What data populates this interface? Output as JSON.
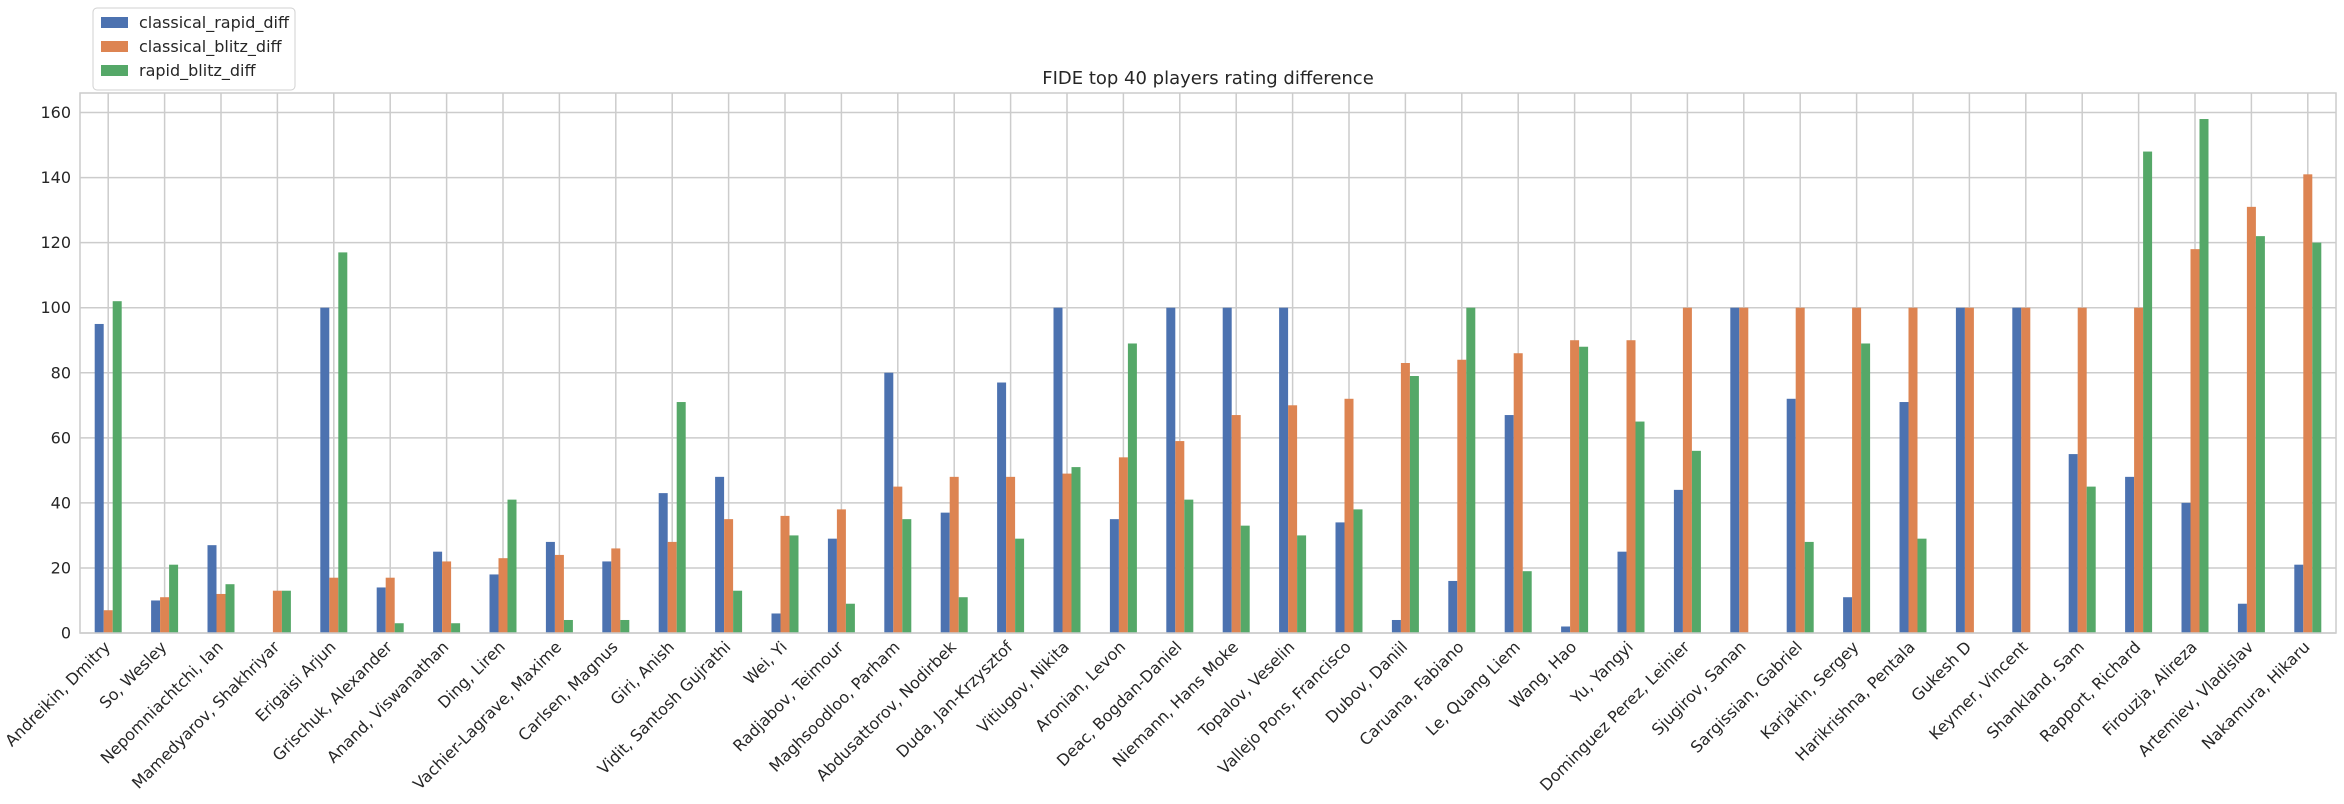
{
  "chart_data": {
    "type": "bar",
    "title": "FIDE top 40 players rating difference",
    "xlabel": "",
    "ylabel": "",
    "ylim": [
      0,
      166
    ],
    "yticks": [
      0,
      20,
      40,
      60,
      80,
      100,
      120,
      140,
      160
    ],
    "grid": true,
    "legend_position": "top-left",
    "categories": [
      "Andreikin, Dmitry",
      "So, Wesley",
      "Nepomniachtchi, Ian",
      "Mamedyarov, Shakhriyar",
      "Erigaisi Arjun",
      "Grischuk, Alexander",
      "Anand, Viswanathan",
      "Ding, Liren",
      "Vachier-Lagrave, Maxime",
      "Carlsen, Magnus",
      "Giri, Anish",
      "Vidit, Santosh Gujrathi",
      "Wei, Yi",
      "Radjabov, Teimour",
      "Maghsoodloo, Parham",
      "Abdusattorov, Nodirbek",
      "Duda, Jan-Krzysztof",
      "Vitiugov, Nikita",
      "Aronian, Levon",
      "Deac, Bogdan-Daniel",
      "Niemann, Hans Moke",
      "Topalov, Veselin",
      "Vallejo Pons, Francisco",
      "Dubov, Daniil",
      "Caruana, Fabiano",
      "Le, Quang Liem",
      "Wang, Hao",
      "Yu, Yangyi",
      "Dominguez Perez, Leinier",
      "Sjugirov, Sanan",
      "Sargissian, Gabriel",
      "Karjakin, Sergey",
      "Harikrishna, Pentala",
      "Gukesh D",
      "Keymer, Vincent",
      "Shankland, Sam",
      "Rapport, Richard",
      "Firouzja, Alireza",
      "Artemiev, Vladislav",
      "Nakamura, Hikaru"
    ],
    "series": [
      {
        "name": "classical_rapid_diff",
        "color": "#4c72b0",
        "values": [
          95,
          10,
          27,
          0,
          100,
          14,
          25,
          18,
          28,
          22,
          43,
          48,
          6,
          29,
          80,
          37,
          77,
          100,
          35,
          100,
          100,
          100,
          34,
          4,
          16,
          67,
          2,
          25,
          44,
          100,
          72,
          11,
          71,
          100,
          100,
          55,
          48,
          40,
          9,
          21
        ]
      },
      {
        "name": "classical_blitz_diff",
        "color": "#dd8452",
        "values": [
          7,
          11,
          12,
          13,
          17,
          17,
          22,
          23,
          24,
          26,
          28,
          35,
          36,
          38,
          45,
          48,
          48,
          49,
          54,
          59,
          67,
          70,
          72,
          83,
          84,
          86,
          90,
          90,
          100,
          100,
          100,
          100,
          100,
          100,
          100,
          100,
          100,
          118,
          131,
          141
        ]
      },
      {
        "name": "rapid_blitz_diff",
        "color": "#55a868",
        "values": [
          102,
          21,
          15,
          13,
          117,
          3,
          3,
          41,
          4,
          4,
          71,
          13,
          30,
          9,
          35,
          11,
          29,
          51,
          89,
          41,
          33,
          30,
          38,
          79,
          100,
          19,
          88,
          65,
          56,
          0,
          28,
          89,
          29,
          0,
          0,
          45,
          148,
          158,
          122,
          120
        ]
      }
    ]
  }
}
